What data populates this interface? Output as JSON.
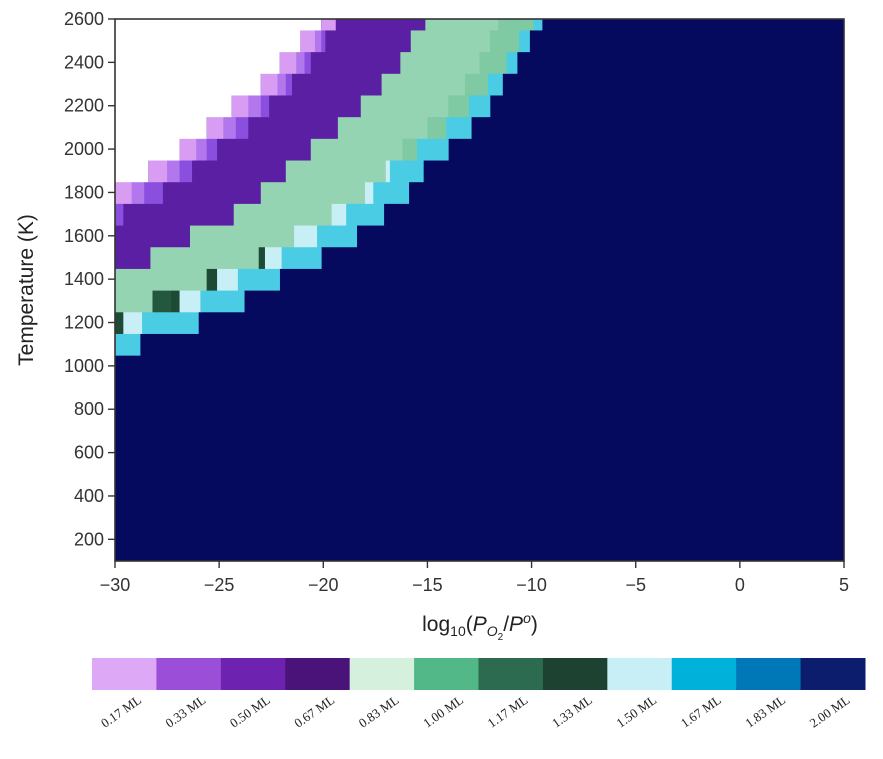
{
  "chart_data": {
    "type": "heatmap",
    "xlabel": "log10(PO2/Po)",
    "ylabel": "Temperature (K)",
    "xlim": [
      -30,
      5
    ],
    "ylim": [
      100,
      2600
    ],
    "xticks": [
      -30,
      -25,
      -20,
      -15,
      -10,
      -5,
      0,
      5
    ],
    "xtick_labels": [
      "−30",
      "−25",
      "−20",
      "−15",
      "−10",
      "−5",
      "0",
      "5"
    ],
    "yticks": [
      200,
      400,
      600,
      800,
      1000,
      1200,
      1400,
      1600,
      1800,
      2000,
      2200,
      2400,
      2600
    ],
    "ytick_labels": [
      "200",
      "400",
      "600",
      "800",
      "1000",
      "1200",
      "1400",
      "1600",
      "1800",
      "2000",
      "2200",
      "2400",
      "2600"
    ],
    "background_color": "#050a5e",
    "colorbar": {
      "position": "bottom",
      "labels": [
        "0.17 ML",
        "0.33 ML",
        "0.50 ML",
        "0.67 ML",
        "0.83 ML",
        "1.00 ML",
        "1.17 ML",
        "1.33 ML",
        "1.50 ML",
        "1.67 ML",
        "1.83 ML",
        "2.00 ML"
      ],
      "colors": [
        "#dda8f6",
        "#9b4fd9",
        "#6d23b0",
        "#4a137a",
        "#d6f0de",
        "#52b887",
        "#2d6b50",
        "#1d4231",
        "#c8eef6",
        "#00b1da",
        "#0077b6",
        "#0b1d6c"
      ]
    },
    "phase_rows": [
      {
        "t": 1100,
        "white_end": null,
        "bands": [
          {
            "from": -30,
            "to": -28.8,
            "color": "#4bcce5"
          }
        ]
      },
      {
        "t": 1200,
        "white_end": null,
        "bands": [
          {
            "from": -30,
            "to": -29.6,
            "color": "#1d4a34"
          },
          {
            "from": -29.6,
            "to": -28.7,
            "color": "#c8eef6"
          },
          {
            "from": -28.7,
            "to": -26,
            "color": "#4bcce5"
          }
        ]
      },
      {
        "t": 1300,
        "white_end": null,
        "bands": [
          {
            "from": -30,
            "to": -28.2,
            "color": "#94d4b2"
          },
          {
            "from": -28.2,
            "to": -27.3,
            "color": "#23583f"
          },
          {
            "from": -27.3,
            "to": -26.9,
            "color": "#1d4a34"
          },
          {
            "from": -26.9,
            "to": -25.9,
            "color": "#c8eef6"
          },
          {
            "from": -25.9,
            "to": -23.8,
            "color": "#4bcce5"
          }
        ]
      },
      {
        "t": 1400,
        "white_end": null,
        "bands": [
          {
            "from": -30,
            "to": -25.6,
            "color": "#94d4b2"
          },
          {
            "from": -25.6,
            "to": -25.1,
            "color": "#1d4a34"
          },
          {
            "from": -25.1,
            "to": -24.1,
            "color": "#c8eef6"
          },
          {
            "from": -24.1,
            "to": -22.1,
            "color": "#4bcce5"
          }
        ]
      },
      {
        "t": 1500,
        "white_end": null,
        "bands": [
          {
            "from": -30,
            "to": -28.3,
            "color": "#5a1fa3"
          },
          {
            "from": -28.3,
            "to": -23.1,
            "color": "#94d4b2"
          },
          {
            "from": -23.1,
            "to": -22.8,
            "color": "#1d4a34"
          },
          {
            "from": -22.8,
            "to": -22.0,
            "color": "#c8eef6"
          },
          {
            "from": -22.0,
            "to": -20.1,
            "color": "#4bcce5"
          }
        ]
      },
      {
        "t": 1600,
        "white_end": null,
        "bands": [
          {
            "from": -30,
            "to": -26.4,
            "color": "#5a1fa3"
          },
          {
            "from": -26.4,
            "to": -21.4,
            "color": "#94d4b2"
          },
          {
            "from": -21.4,
            "to": -20.3,
            "color": "#c8eef6"
          },
          {
            "from": -20.3,
            "to": -18.4,
            "color": "#4bcce5"
          }
        ]
      },
      {
        "t": 1700,
        "white_end": null,
        "bands": [
          {
            "from": -30,
            "to": -29.6,
            "color": "#8b4fdf"
          },
          {
            "from": -29.6,
            "to": -24.3,
            "color": "#5a1fa3"
          },
          {
            "from": -24.3,
            "to": -19.6,
            "color": "#94d4b2"
          },
          {
            "from": -19.6,
            "to": -18.9,
            "color": "#c8eef6"
          },
          {
            "from": -18.9,
            "to": -17.1,
            "color": "#4bcce5"
          }
        ]
      },
      {
        "t": 1800,
        "white_end": null,
        "bands": [
          {
            "from": -30,
            "to": -29.2,
            "color": "#d89cf3"
          },
          {
            "from": -29.2,
            "to": -28.6,
            "color": "#b277ec"
          },
          {
            "from": -28.6,
            "to": -27.7,
            "color": "#8b4fdf"
          },
          {
            "from": -27.7,
            "to": -23.0,
            "color": "#5a1fa3"
          },
          {
            "from": -23.0,
            "to": -18.0,
            "color": "#94d4b2"
          },
          {
            "from": -18.0,
            "to": -17.6,
            "color": "#c8eef6"
          },
          {
            "from": -17.6,
            "to": -15.9,
            "color": "#4bcce5"
          }
        ]
      },
      {
        "t": 1900,
        "white_end": -28.4,
        "bands": [
          {
            "from": -28.4,
            "to": -27.5,
            "color": "#d89cf3"
          },
          {
            "from": -27.5,
            "to": -26.9,
            "color": "#b277ec"
          },
          {
            "from": -26.9,
            "to": -26.3,
            "color": "#8b4fdf"
          },
          {
            "from": -26.3,
            "to": -21.8,
            "color": "#5a1fa3"
          },
          {
            "from": -21.8,
            "to": -17.0,
            "color": "#94d4b2"
          },
          {
            "from": -17.0,
            "to": -16.8,
            "color": "#c8eef6"
          },
          {
            "from": -16.8,
            "to": -15.2,
            "color": "#4bcce5"
          }
        ]
      },
      {
        "t": 2000,
        "white_end": -26.9,
        "bands": [
          {
            "from": -26.9,
            "to": -26.1,
            "color": "#d89cf3"
          },
          {
            "from": -26.1,
            "to": -25.6,
            "color": "#b277ec"
          },
          {
            "from": -25.6,
            "to": -25.1,
            "color": "#8b4fdf"
          },
          {
            "from": -25.1,
            "to": -20.6,
            "color": "#5a1fa3"
          },
          {
            "from": -20.6,
            "to": -16.2,
            "color": "#94d4b2"
          },
          {
            "from": -16.2,
            "to": -15.5,
            "color": "#7fcaa3"
          },
          {
            "from": -15.5,
            "to": -14.0,
            "color": "#4bcce5"
          }
        ]
      },
      {
        "t": 2100,
        "white_end": -25.6,
        "bands": [
          {
            "from": -25.6,
            "to": -24.8,
            "color": "#d89cf3"
          },
          {
            "from": -24.8,
            "to": -24.2,
            "color": "#b277ec"
          },
          {
            "from": -24.2,
            "to": -23.6,
            "color": "#8b4fdf"
          },
          {
            "from": -23.6,
            "to": -19.3,
            "color": "#5a1fa3"
          },
          {
            "from": -19.3,
            "to": -15.0,
            "color": "#94d4b2"
          },
          {
            "from": -15.0,
            "to": -14.1,
            "color": "#7fcaa3"
          },
          {
            "from": -14.1,
            "to": -12.9,
            "color": "#4bcce5"
          }
        ]
      },
      {
        "t": 2200,
        "white_end": -24.4,
        "bands": [
          {
            "from": -24.4,
            "to": -23.6,
            "color": "#d89cf3"
          },
          {
            "from": -23.6,
            "to": -23.0,
            "color": "#b277ec"
          },
          {
            "from": -23.0,
            "to": -22.6,
            "color": "#8b4fdf"
          },
          {
            "from": -22.6,
            "to": -18.2,
            "color": "#5a1fa3"
          },
          {
            "from": -18.2,
            "to": -14.0,
            "color": "#94d4b2"
          },
          {
            "from": -14.0,
            "to": -13.0,
            "color": "#7fcaa3"
          },
          {
            "from": -13.0,
            "to": -12.0,
            "color": "#4bcce5"
          }
        ]
      },
      {
        "t": 2300,
        "white_end": -23.0,
        "bands": [
          {
            "from": -23.0,
            "to": -22.2,
            "color": "#d89cf3"
          },
          {
            "from": -22.2,
            "to": -21.8,
            "color": "#b277ec"
          },
          {
            "from": -21.8,
            "to": -21.5,
            "color": "#8b4fdf"
          },
          {
            "from": -21.5,
            "to": -17.2,
            "color": "#5a1fa3"
          },
          {
            "from": -17.2,
            "to": -13.2,
            "color": "#94d4b2"
          },
          {
            "from": -13.2,
            "to": -12.1,
            "color": "#7fcaa3"
          },
          {
            "from": -12.1,
            "to": -11.4,
            "color": "#4bcce5"
          }
        ]
      },
      {
        "t": 2400,
        "white_end": -22.1,
        "bands": [
          {
            "from": -22.1,
            "to": -21.3,
            "color": "#d89cf3"
          },
          {
            "from": -21.3,
            "to": -20.9,
            "color": "#b277ec"
          },
          {
            "from": -20.9,
            "to": -20.6,
            "color": "#8b4fdf"
          },
          {
            "from": -20.6,
            "to": -16.3,
            "color": "#5a1fa3"
          },
          {
            "from": -16.3,
            "to": -12.5,
            "color": "#94d4b2"
          },
          {
            "from": -12.5,
            "to": -11.2,
            "color": "#7fcaa3"
          },
          {
            "from": -11.2,
            "to": -10.7,
            "color": "#4bcce5"
          }
        ]
      },
      {
        "t": 2500,
        "white_end": -21.1,
        "bands": [
          {
            "from": -21.1,
            "to": -20.4,
            "color": "#d89cf3"
          },
          {
            "from": -20.4,
            "to": -20.1,
            "color": "#b277ec"
          },
          {
            "from": -20.1,
            "to": -19.9,
            "color": "#8b4fdf"
          },
          {
            "from": -19.9,
            "to": -15.8,
            "color": "#5a1fa3"
          },
          {
            "from": -15.8,
            "to": -12.0,
            "color": "#94d4b2"
          },
          {
            "from": -12.0,
            "to": -10.6,
            "color": "#7fcaa3"
          },
          {
            "from": -10.6,
            "to": -10.1,
            "color": "#4bcce5"
          }
        ]
      },
      {
        "t": 2600,
        "white_end": -20.1,
        "bands": [
          {
            "from": -20.1,
            "to": -19.4,
            "color": "#d89cf3"
          },
          {
            "from": -19.4,
            "to": -15.1,
            "color": "#5a1fa3"
          },
          {
            "from": -15.1,
            "to": -11.6,
            "color": "#94d4b2"
          },
          {
            "from": -11.6,
            "to": -9.9,
            "color": "#7fcaa3"
          },
          {
            "from": -9.9,
            "to": -9.5,
            "color": "#4bcce5"
          }
        ]
      }
    ]
  }
}
